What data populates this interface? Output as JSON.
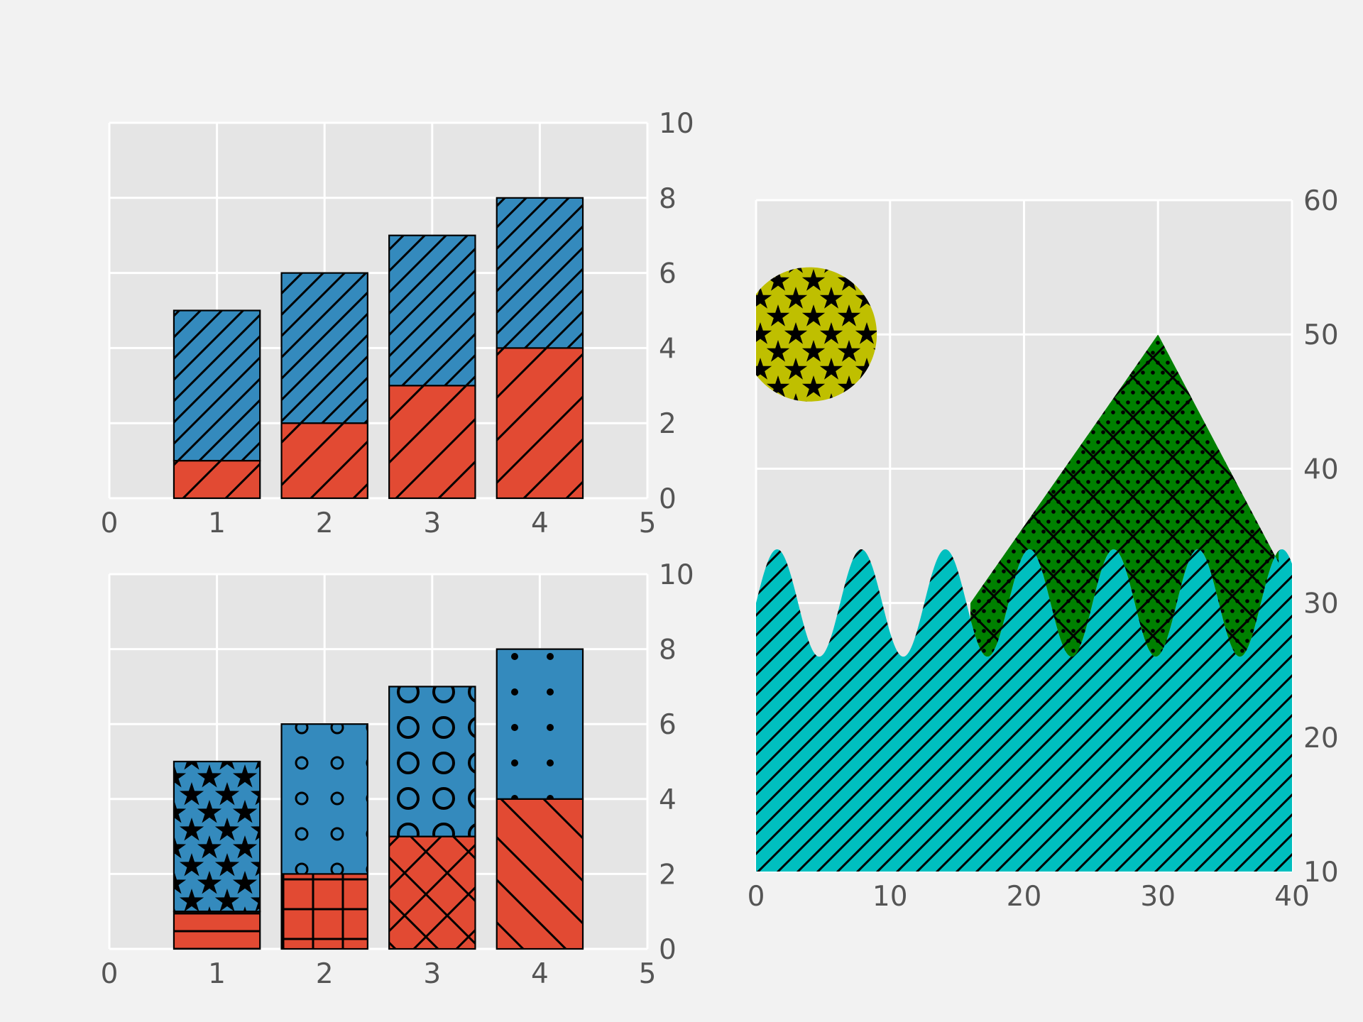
{
  "chart_data": [
    {
      "type": "bar",
      "layout": "stacked",
      "title": "",
      "xlabel": "",
      "ylabel": "",
      "xlim": [
        0,
        5
      ],
      "ylim": [
        0,
        10
      ],
      "grid": true,
      "y_axis_side": "right",
      "x_ticks": [
        0,
        1,
        2,
        3,
        4,
        5
      ],
      "y_ticks": [
        0,
        2,
        4,
        6,
        8,
        10
      ],
      "categories": [
        1,
        2,
        3,
        4
      ],
      "series": [
        {
          "values": [
            1,
            2,
            3,
            4
          ],
          "color": "#e24a33",
          "hatches": [
            "diag",
            "diag",
            "diag",
            "diag"
          ]
        },
        {
          "values": [
            4,
            4,
            4,
            4
          ],
          "color": "#348abd",
          "hatches": [
            "diagDense",
            "diagDense",
            "diagDense",
            "diagDense"
          ]
        }
      ]
    },
    {
      "type": "bar",
      "layout": "stacked",
      "title": "",
      "xlabel": "",
      "ylabel": "",
      "xlim": [
        0,
        5
      ],
      "ylim": [
        0,
        10
      ],
      "grid": true,
      "y_axis_side": "right",
      "x_ticks": [
        0,
        1,
        2,
        3,
        4,
        5
      ],
      "y_ticks": [
        0,
        2,
        4,
        6,
        8,
        10
      ],
      "categories": [
        1,
        2,
        3,
        4
      ],
      "series": [
        {
          "values": [
            1,
            2,
            3,
            4
          ],
          "color": "#e24a33",
          "hatches": [
            "horizontal",
            "grid",
            "crossDiag",
            "backDiag"
          ]
        },
        {
          "values": [
            4,
            4,
            4,
            4
          ],
          "color": "#348abd",
          "hatches": [
            "stars",
            "smallCircles",
            "largeCircles",
            "dots"
          ]
        }
      ]
    },
    {
      "type": "area",
      "title": "",
      "xlabel": "",
      "ylabel": "",
      "xlim": [
        0,
        40
      ],
      "ylim": [
        10,
        60
      ],
      "grid": true,
      "y_axis_side": "right",
      "x_ticks": [
        0,
        10,
        20,
        30,
        40
      ],
      "y_ticks": [
        10,
        20,
        30,
        40,
        50,
        60
      ],
      "series": [
        {
          "kind": "wave fill from y=10",
          "baseline": 10,
          "mean": 30,
          "amplitude": 4,
          "period": 6.28,
          "x_range": [
            0,
            40
          ],
          "color": "#00bfbf",
          "hatch": "diag"
        },
        {
          "kind": "mountain fill between triangle and wave",
          "peak": [
            30,
            50
          ],
          "ends": [
            [
              16,
              30
            ],
            [
              39,
              33
            ]
          ],
          "color": "#008000",
          "hatch": "dotsAndCross"
        }
      ],
      "circle": {
        "center": [
          4,
          50
        ],
        "radius": 5,
        "color": "#bfbf00",
        "hatch": "stars"
      }
    }
  ]
}
